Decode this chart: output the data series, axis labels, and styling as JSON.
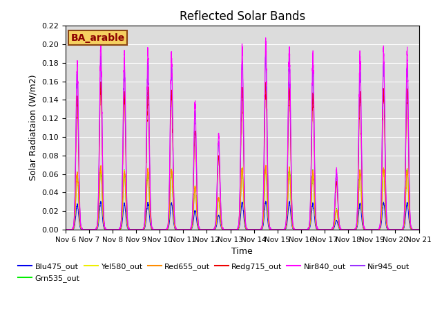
{
  "title": "Reflected Solar Bands",
  "xlabel": "Time",
  "ylabel": "Solar Radiataion (W/m2)",
  "ylim": [
    0,
    0.22
  ],
  "annotation_text": "BA_arable",
  "series": [
    {
      "name": "Blu475_out",
      "color": "#0000EE",
      "peak_scale": 0.03
    },
    {
      "name": "Grn535_out",
      "color": "#00EE00",
      "peak_scale": 0.067
    },
    {
      "name": "Yel580_out",
      "color": "#EEEE00",
      "peak_scale": 0.067
    },
    {
      "name": "Red655_out",
      "color": "#FF8C00",
      "peak_scale": 0.067
    },
    {
      "name": "Redg715_out",
      "color": "#EE0000",
      "peak_scale": 0.155
    },
    {
      "name": "Nir840_out",
      "color": "#FF00FF",
      "peak_scale": 0.2
    },
    {
      "name": "Nir945_out",
      "color": "#9B30FF",
      "peak_scale": 0.185
    }
  ],
  "n_days": 15,
  "pts_per_day": 288,
  "start_day": 6,
  "day_peak_factors": [
    0.9,
    1.0,
    0.93,
    0.96,
    0.94,
    0.68,
    0.5,
    0.97,
    1.0,
    0.98,
    0.93,
    0.32,
    0.93,
    0.96,
    0.95
  ],
  "background_color": "#DCDCDC",
  "grid_color": "white",
  "linewidth": 0.7
}
